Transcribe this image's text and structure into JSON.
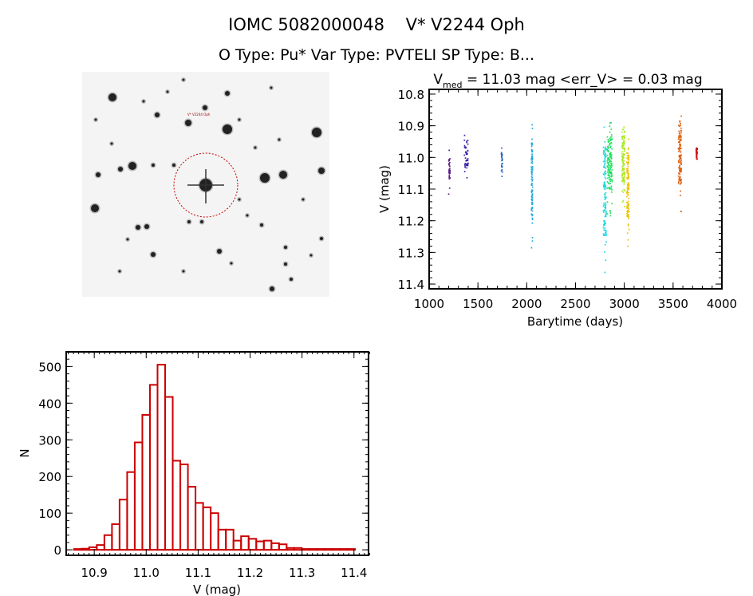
{
  "header": {
    "title": "IOMC 5082000048    V* V2244 Oph",
    "subtitle": "O Type: Pu*  Var Type: PVTELI  SP Type: B..."
  },
  "image_panel": {
    "target_label": "V* V2244 Oph",
    "marker_color": "#cc0000"
  },
  "chart_data": [
    {
      "type": "scatter",
      "title_prefix": "V",
      "title_sub": "med",
      "title_rest": " = 11.03 mag <err_V> = 0.03 mag",
      "xlabel": "Barytime (days)",
      "ylabel": "V (mag)",
      "xlim": [
        1000,
        4000
      ],
      "ylim": [
        11.415,
        10.785
      ],
      "xticks": [
        "1000",
        "1500",
        "2000",
        "2500",
        "3000",
        "3500",
        "4000"
      ],
      "yticks": [
        "10.8",
        "10.9",
        "11.0",
        "11.1",
        "11.2",
        "11.3",
        "11.4"
      ],
      "clusters": [
        {
          "x": [
            1200,
            1215
          ],
          "y": [
            10.95,
            11.13
          ],
          "n": 30,
          "color": "#5a1a8a"
        },
        {
          "x": [
            1360,
            1400
          ],
          "y": [
            10.93,
            11.07
          ],
          "n": 45,
          "color": "#3a22a8"
        },
        {
          "x": [
            1740,
            1750
          ],
          "y": [
            10.97,
            11.065
          ],
          "n": 25,
          "color": "#2060c8"
        },
        {
          "x": [
            2048,
            2060
          ],
          "y": [
            10.89,
            11.32
          ],
          "n": 90,
          "color": "#20a8e0"
        },
        {
          "x": [
            2785,
            2815
          ],
          "y": [
            10.89,
            11.4
          ],
          "n": 120,
          "color": "#20d8e0"
        },
        {
          "x": [
            2825,
            2875
          ],
          "y": [
            10.89,
            11.19
          ],
          "n": 140,
          "color": "#20e060"
        },
        {
          "x": [
            2975,
            3005
          ],
          "y": [
            10.89,
            11.16
          ],
          "n": 110,
          "color": "#a8e820"
        },
        {
          "x": [
            3025,
            3048
          ],
          "y": [
            10.93,
            11.3
          ],
          "n": 110,
          "color": "#f0c000"
        },
        {
          "x": [
            3555,
            3585
          ],
          "y": [
            10.86,
            11.18
          ],
          "n": 120,
          "color": "#e06010"
        },
        {
          "x": [
            3735,
            3748
          ],
          "y": [
            10.96,
            11.025
          ],
          "n": 35,
          "color": "#d01010"
        }
      ]
    },
    {
      "type": "bar",
      "xlabel": "V (mag)",
      "ylabel": "N",
      "xlim": [
        10.846,
        11.428
      ],
      "ylim": [
        -15,
        540
      ],
      "xticks": [
        "10.9",
        "11.0",
        "11.1",
        "11.2",
        "11.3",
        "11.4"
      ],
      "yticks": [
        "0",
        "100",
        "200",
        "300",
        "400",
        "500"
      ],
      "bin_start": 10.861,
      "bin_width": 0.01462,
      "values": [
        2,
        3,
        7,
        13,
        40,
        70,
        137,
        212,
        293,
        368,
        450,
        505,
        417,
        243,
        233,
        172,
        128,
        116,
        100,
        55,
        55,
        25,
        37,
        30,
        23,
        25,
        18,
        15,
        5,
        5,
        1,
        1,
        1,
        1,
        1,
        0,
        2
      ],
      "color": "#cc0000"
    }
  ]
}
